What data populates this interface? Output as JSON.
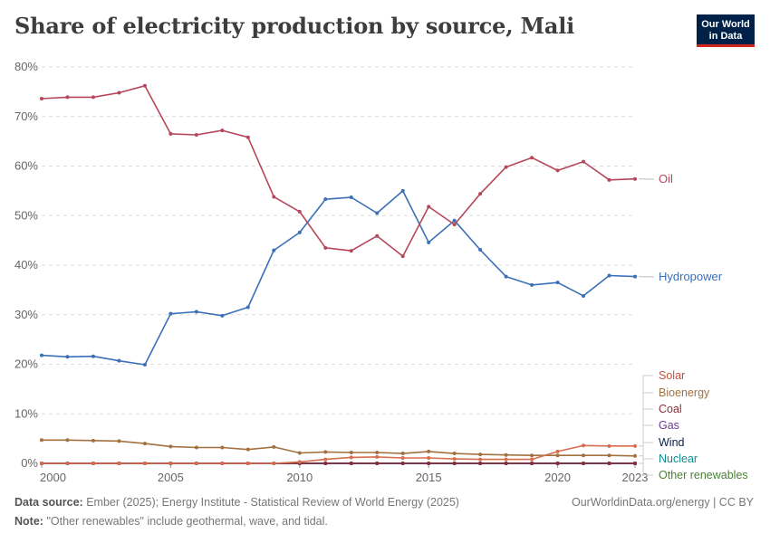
{
  "header": {
    "title": "Share of electricity production by source, Mali",
    "logo_line1": "Our World",
    "logo_line2": "in Data"
  },
  "footer": {
    "source_label": "Data source:",
    "source_text": "Ember (2025); Energy Institute - Statistical Review of World Energy (2025)",
    "note_label": "Note:",
    "note_text": "\"Other renewables\" include geothermal, wave, and tidal.",
    "url": "OurWorldinData.org/energy | CC BY"
  },
  "chart_data": {
    "type": "line",
    "title": "Share of electricity production by source, Mali",
    "x": [
      2000,
      2001,
      2002,
      2003,
      2004,
      2005,
      2006,
      2007,
      2008,
      2009,
      2010,
      2011,
      2012,
      2013,
      2014,
      2015,
      2016,
      2017,
      2018,
      2019,
      2020,
      2021,
      2022,
      2023
    ],
    "xticks": [
      "2000",
      "2005",
      "2010",
      "2015",
      "2020",
      "2023"
    ],
    "xtick_values": [
      2000,
      2005,
      2010,
      2015,
      2020,
      2023
    ],
    "yticks": [
      "0%",
      "10%",
      "20%",
      "30%",
      "40%",
      "50%",
      "60%",
      "70%",
      "80%"
    ],
    "ylim": [
      0,
      80
    ],
    "xlim": [
      2000,
      2023
    ],
    "grid": true,
    "legend": "right-labels",
    "series": [
      {
        "name": "Oil",
        "color": "#b6475b",
        "label_color": "#b6475b",
        "values": [
          73.6,
          73.9,
          73.9,
          74.8,
          76.2,
          66.5,
          66.3,
          67.2,
          65.8,
          53.8,
          50.8,
          43.5,
          42.9,
          45.9,
          41.8,
          51.8,
          48.2,
          54.4,
          59.8,
          61.7,
          59.1,
          60.9,
          57.2,
          57.4
        ]
      },
      {
        "name": "Hydropower",
        "color": "#3b6fb6",
        "label_color": "#3b6fb6",
        "values": [
          21.8,
          21.5,
          21.6,
          20.7,
          19.9,
          30.2,
          30.6,
          29.8,
          31.5,
          43.0,
          46.6,
          53.3,
          53.7,
          50.5,
          55.0,
          44.6,
          49.0,
          43.1,
          37.7,
          36.0,
          36.5,
          33.8,
          37.9,
          37.7
        ]
      },
      {
        "name": "Solar",
        "color": "#d66e4e",
        "label_color": "#c0523a",
        "values": [
          0,
          0,
          0,
          0,
          0,
          0,
          0,
          0,
          0,
          0,
          0.3,
          0.8,
          1.2,
          1.3,
          1.1,
          1.1,
          0.9,
          0.8,
          0.8,
          0.8,
          2.4,
          3.6,
          3.5,
          3.5
        ]
      },
      {
        "name": "Bioenergy",
        "color": "#a2713f",
        "label_color": "#a2713f",
        "values": [
          4.7,
          4.7,
          4.6,
          4.5,
          4.0,
          3.4,
          3.2,
          3.2,
          2.8,
          3.3,
          2.1,
          2.3,
          2.2,
          2.2,
          2.0,
          2.4,
          2.0,
          1.8,
          1.7,
          1.6,
          1.6,
          1.6,
          1.6,
          1.5
        ]
      },
      {
        "name": "Coal",
        "color": "#883039",
        "label_color": "#883039",
        "values": [
          0,
          0,
          0,
          0,
          0,
          0,
          0,
          0,
          0,
          0,
          0,
          0,
          0,
          0,
          0,
          0,
          0,
          0,
          0,
          0,
          0,
          0,
          0,
          0
        ]
      },
      {
        "name": "Gas",
        "color": "#6d3e91",
        "label_color": "#6d3e91",
        "values": [
          0,
          0,
          0,
          0,
          0,
          0,
          0,
          0,
          0,
          0,
          0,
          0,
          0,
          0,
          0,
          0,
          0,
          0,
          0,
          0,
          0,
          0,
          0,
          0
        ]
      },
      {
        "name": "Wind",
        "color": "#0a1f4c",
        "label_color": "#0a1f4c",
        "values": [
          0,
          0,
          0,
          0,
          0,
          0,
          0,
          0,
          0,
          0,
          0,
          0,
          0,
          0,
          0,
          0,
          0,
          0,
          0,
          0,
          0,
          0,
          0,
          0
        ]
      },
      {
        "name": "Nuclear",
        "color": "#118d8d",
        "label_color": "#118d8d",
        "values": [
          0,
          0,
          0,
          0,
          0,
          0,
          0,
          0,
          0,
          0,
          0,
          0,
          0,
          0,
          0,
          0,
          0,
          0,
          0,
          0,
          0,
          0,
          0,
          0
        ]
      },
      {
        "name": "Other renewables",
        "color": "#4c7e36",
        "label_color": "#4c7e36",
        "values": [
          0,
          0,
          0,
          0,
          0,
          0,
          0,
          0,
          0,
          0,
          0,
          0,
          0,
          0,
          0,
          0,
          0,
          0,
          0,
          0,
          0,
          0,
          0,
          0
        ]
      }
    ]
  }
}
